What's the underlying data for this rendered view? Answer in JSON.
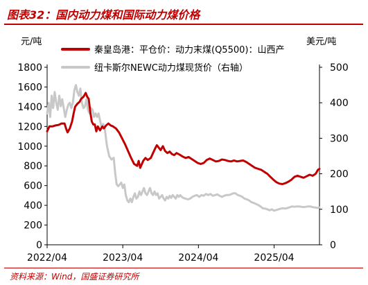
{
  "figure": {
    "title": "图表32：国内动力煤和国际动力煤价格",
    "source": "资料来源：Wind，国盛证券研究所"
  },
  "colors": {
    "accent": "#c00000",
    "series_domestic": "#c00000",
    "series_international": "#c8c8c8",
    "axis": "#000000"
  },
  "chart_data": {
    "type": "line",
    "left_unit": "元/吨",
    "right_unit": "美元/吨",
    "x_ticks": [
      "2022/04",
      "2023/04",
      "2024/04",
      "2025/04"
    ],
    "x_tick_values": [
      2022.25,
      2023.25,
      2024.25,
      2025.25
    ],
    "xlim": [
      2022.25,
      2025.85
    ],
    "ylim_left": [
      0,
      1800
    ],
    "ylim_right": [
      0,
      500
    ],
    "y_ticks_left": [
      0,
      200,
      400,
      600,
      800,
      1000,
      1200,
      1400,
      1600,
      1800
    ],
    "y_ticks_right": [
      0,
      100,
      200,
      300,
      400,
      500
    ],
    "legend_position": "top",
    "series": [
      {
        "name": "秦皇岛港：平仓价：动力末煤(Q5500)：山西产",
        "axis": "left",
        "color": "#c00000",
        "points": [
          [
            2022.25,
            1150
          ],
          [
            2022.28,
            1200
          ],
          [
            2022.32,
            1200
          ],
          [
            2022.36,
            1210
          ],
          [
            2022.4,
            1215
          ],
          [
            2022.44,
            1230
          ],
          [
            2022.48,
            1230
          ],
          [
            2022.5,
            1180
          ],
          [
            2022.52,
            1140
          ],
          [
            2022.55,
            1180
          ],
          [
            2022.58,
            1250
          ],
          [
            2022.6,
            1330
          ],
          [
            2022.62,
            1400
          ],
          [
            2022.65,
            1430
          ],
          [
            2022.68,
            1450
          ],
          [
            2022.7,
            1480
          ],
          [
            2022.73,
            1500
          ],
          [
            2022.76,
            1540
          ],
          [
            2022.78,
            1500
          ],
          [
            2022.8,
            1480
          ],
          [
            2022.82,
            1350
          ],
          [
            2022.84,
            1250
          ],
          [
            2022.86,
            1220
          ],
          [
            2022.88,
            1220
          ],
          [
            2022.9,
            1150
          ],
          [
            2022.92,
            1200
          ],
          [
            2022.95,
            1160
          ],
          [
            2022.98,
            1200
          ],
          [
            2023.0,
            1180
          ],
          [
            2023.03,
            1210
          ],
          [
            2023.06,
            1230
          ],
          [
            2023.09,
            1210
          ],
          [
            2023.12,
            1200
          ],
          [
            2023.16,
            1180
          ],
          [
            2023.2,
            1140
          ],
          [
            2023.24,
            1080
          ],
          [
            2023.28,
            1020
          ],
          [
            2023.32,
            950
          ],
          [
            2023.36,
            880
          ],
          [
            2023.4,
            820
          ],
          [
            2023.44,
            800
          ],
          [
            2023.46,
            850
          ],
          [
            2023.48,
            780
          ],
          [
            2023.52,
            850
          ],
          [
            2023.55,
            880
          ],
          [
            2023.58,
            860
          ],
          [
            2023.62,
            880
          ],
          [
            2023.65,
            930
          ],
          [
            2023.68,
            980
          ],
          [
            2023.7,
            1010
          ],
          [
            2023.72,
            990
          ],
          [
            2023.75,
            960
          ],
          [
            2023.78,
            1000
          ],
          [
            2023.81,
            950
          ],
          [
            2023.84,
            930
          ],
          [
            2023.87,
            945
          ],
          [
            2023.9,
            920
          ],
          [
            2023.93,
            910
          ],
          [
            2023.96,
            930
          ],
          [
            2024.0,
            915
          ],
          [
            2024.04,
            895
          ],
          [
            2024.08,
            880
          ],
          [
            2024.12,
            890
          ],
          [
            2024.16,
            870
          ],
          [
            2024.2,
            850
          ],
          [
            2024.24,
            830
          ],
          [
            2024.28,
            820
          ],
          [
            2024.32,
            830
          ],
          [
            2024.36,
            860
          ],
          [
            2024.4,
            875
          ],
          [
            2024.44,
            860
          ],
          [
            2024.48,
            845
          ],
          [
            2024.52,
            850
          ],
          [
            2024.56,
            865
          ],
          [
            2024.6,
            860
          ],
          [
            2024.64,
            850
          ],
          [
            2024.68,
            845
          ],
          [
            2024.72,
            855
          ],
          [
            2024.76,
            845
          ],
          [
            2024.8,
            850
          ],
          [
            2024.84,
            855
          ],
          [
            2024.88,
            840
          ],
          [
            2024.92,
            820
          ],
          [
            2024.96,
            800
          ],
          [
            2025.0,
            780
          ],
          [
            2025.04,
            770
          ],
          [
            2025.08,
            760
          ],
          [
            2025.12,
            740
          ],
          [
            2025.16,
            720
          ],
          [
            2025.2,
            690
          ],
          [
            2025.24,
            660
          ],
          [
            2025.28,
            635
          ],
          [
            2025.32,
            620
          ],
          [
            2025.36,
            615
          ],
          [
            2025.4,
            625
          ],
          [
            2025.44,
            640
          ],
          [
            2025.48,
            660
          ],
          [
            2025.52,
            690
          ],
          [
            2025.56,
            700
          ],
          [
            2025.6,
            690
          ],
          [
            2025.64,
            680
          ],
          [
            2025.68,
            695
          ],
          [
            2025.72,
            710
          ],
          [
            2025.76,
            700
          ],
          [
            2025.8,
            720
          ],
          [
            2025.83,
            760
          ],
          [
            2025.85,
            770
          ]
        ]
      },
      {
        "name": "纽卡斯尔NEWC动力煤现货价（右轴）",
        "axis": "right",
        "color": "#c8c8c8",
        "points": [
          [
            2022.25,
            370
          ],
          [
            2022.27,
            400
          ],
          [
            2022.29,
            360
          ],
          [
            2022.31,
            420
          ],
          [
            2022.33,
            385
          ],
          [
            2022.35,
            430
          ],
          [
            2022.37,
            400
          ],
          [
            2022.39,
            380
          ],
          [
            2022.41,
            420
          ],
          [
            2022.43,
            390
          ],
          [
            2022.45,
            410
          ],
          [
            2022.47,
            385
          ],
          [
            2022.49,
            360
          ],
          [
            2022.51,
            380
          ],
          [
            2022.53,
            395
          ],
          [
            2022.55,
            400
          ],
          [
            2022.57,
            385
          ],
          [
            2022.59,
            400
          ],
          [
            2022.61,
            435
          ],
          [
            2022.63,
            450
          ],
          [
            2022.65,
            430
          ],
          [
            2022.67,
            420
          ],
          [
            2022.69,
            440
          ],
          [
            2022.71,
            400
          ],
          [
            2022.73,
            385
          ],
          [
            2022.75,
            390
          ],
          [
            2022.77,
            410
          ],
          [
            2022.79,
            380
          ],
          [
            2022.81,
            370
          ],
          [
            2022.83,
            385
          ],
          [
            2022.85,
            380
          ],
          [
            2022.87,
            360
          ],
          [
            2022.89,
            370
          ],
          [
            2022.91,
            360
          ],
          [
            2022.93,
            370
          ],
          [
            2022.95,
            350
          ],
          [
            2022.97,
            330
          ],
          [
            2022.99,
            340
          ],
          [
            2023.01,
            330
          ],
          [
            2023.04,
            280
          ],
          [
            2023.07,
            250
          ],
          [
            2023.1,
            240
          ],
          [
            2023.13,
            245
          ],
          [
            2023.15,
            200
          ],
          [
            2023.17,
            170
          ],
          [
            2023.19,
            165
          ],
          [
            2023.21,
            170
          ],
          [
            2023.23,
            175
          ],
          [
            2023.25,
            160
          ],
          [
            2023.27,
            170
          ],
          [
            2023.29,
            140
          ],
          [
            2023.31,
            125
          ],
          [
            2023.33,
            120
          ],
          [
            2023.35,
            130
          ],
          [
            2023.37,
            120
          ],
          [
            2023.39,
            135
          ],
          [
            2023.41,
            145
          ],
          [
            2023.43,
            130
          ],
          [
            2023.45,
            135
          ],
          [
            2023.47,
            150
          ],
          [
            2023.49,
            140
          ],
          [
            2023.51,
            150
          ],
          [
            2023.53,
            160
          ],
          [
            2023.55,
            145
          ],
          [
            2023.57,
            140
          ],
          [
            2023.59,
            150
          ],
          [
            2023.61,
            160
          ],
          [
            2023.63,
            145
          ],
          [
            2023.65,
            140
          ],
          [
            2023.67,
            150
          ],
          [
            2023.69,
            140
          ],
          [
            2023.71,
            145
          ],
          [
            2023.73,
            130
          ],
          [
            2023.75,
            135
          ],
          [
            2023.77,
            140
          ],
          [
            2023.79,
            130
          ],
          [
            2023.81,
            125
          ],
          [
            2023.83,
            135
          ],
          [
            2023.85,
            130
          ],
          [
            2023.87,
            138
          ],
          [
            2023.89,
            132
          ],
          [
            2023.91,
            140
          ],
          [
            2023.93,
            135
          ],
          [
            2023.95,
            130
          ],
          [
            2023.97,
            140
          ],
          [
            2023.99,
            135
          ],
          [
            2024.01,
            140
          ],
          [
            2024.03,
            135
          ],
          [
            2024.05,
            132
          ],
          [
            2024.08,
            130
          ],
          [
            2024.11,
            128
          ],
          [
            2024.14,
            130
          ],
          [
            2024.17,
            135
          ],
          [
            2024.2,
            138
          ],
          [
            2024.23,
            140
          ],
          [
            2024.26,
            135
          ],
          [
            2024.29,
            140
          ],
          [
            2024.32,
            138
          ],
          [
            2024.35,
            143
          ],
          [
            2024.38,
            140
          ],
          [
            2024.41,
            143
          ],
          [
            2024.44,
            138
          ],
          [
            2024.47,
            140
          ],
          [
            2024.5,
            142
          ],
          [
            2024.53,
            138
          ],
          [
            2024.56,
            135
          ],
          [
            2024.59,
            138
          ],
          [
            2024.62,
            140
          ],
          [
            2024.65,
            140
          ],
          [
            2024.68,
            142
          ],
          [
            2024.71,
            145
          ],
          [
            2024.74,
            145
          ],
          [
            2024.77,
            140
          ],
          [
            2024.8,
            138
          ],
          [
            2024.83,
            135
          ],
          [
            2024.86,
            130
          ],
          [
            2024.89,
            128
          ],
          [
            2024.92,
            125
          ],
          [
            2024.95,
            120
          ],
          [
            2024.98,
            118
          ],
          [
            2025.01,
            115
          ],
          [
            2025.04,
            112
          ],
          [
            2025.07,
            108
          ],
          [
            2025.1,
            103
          ],
          [
            2025.13,
            102
          ],
          [
            2025.16,
            100
          ],
          [
            2025.19,
            97
          ],
          [
            2025.22,
            100
          ],
          [
            2025.25,
            96
          ],
          [
            2025.28,
            98
          ],
          [
            2025.31,
            100
          ],
          [
            2025.34,
            102
          ],
          [
            2025.37,
            103
          ],
          [
            2025.4,
            102
          ],
          [
            2025.43,
            104
          ],
          [
            2025.46,
            106
          ],
          [
            2025.49,
            108
          ],
          [
            2025.52,
            107
          ],
          [
            2025.55,
            108
          ],
          [
            2025.58,
            108
          ],
          [
            2025.61,
            107
          ],
          [
            2025.64,
            106
          ],
          [
            2025.67,
            107
          ],
          [
            2025.7,
            108
          ],
          [
            2025.73,
            108
          ],
          [
            2025.76,
            106
          ],
          [
            2025.79,
            105
          ],
          [
            2025.82,
            104
          ],
          [
            2025.85,
            105
          ]
        ]
      }
    ]
  }
}
